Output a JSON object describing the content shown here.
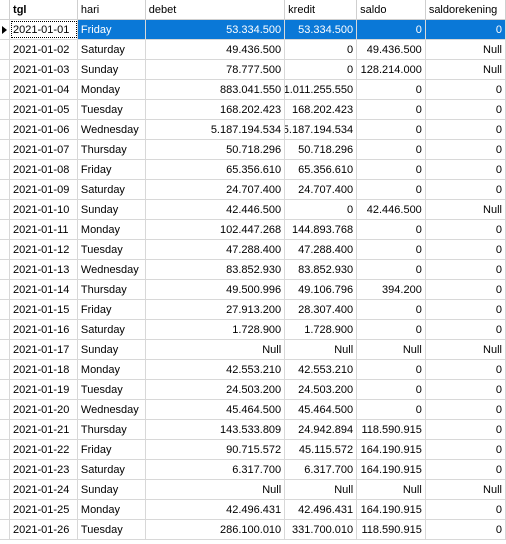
{
  "columns": {
    "tgl": "tgl",
    "hari": "hari",
    "debet": "debet",
    "kredit": "kredit",
    "saldo": "saldo",
    "saldorekening": "saldorekening"
  },
  "selected_row": 0,
  "rows": [
    {
      "tgl": "2021-01-01",
      "hari": "Friday",
      "debet": "53.334.500",
      "kredit": "53.334.500",
      "saldo": "0",
      "saldorekening": "0"
    },
    {
      "tgl": "2021-01-02",
      "hari": "Saturday",
      "debet": "49.436.500",
      "kredit": "0",
      "saldo": "49.436.500",
      "saldorekening": "Null"
    },
    {
      "tgl": "2021-01-03",
      "hari": "Sunday",
      "debet": "78.777.500",
      "kredit": "0",
      "saldo": "128.214.000",
      "saldorekening": "Null"
    },
    {
      "tgl": "2021-01-04",
      "hari": "Monday",
      "debet": "883.041.550",
      "kredit": "1.011.255.550",
      "saldo": "0",
      "saldorekening": "0"
    },
    {
      "tgl": "2021-01-05",
      "hari": "Tuesday",
      "debet": "168.202.423",
      "kredit": "168.202.423",
      "saldo": "0",
      "saldorekening": "0"
    },
    {
      "tgl": "2021-01-06",
      "hari": "Wednesday",
      "debet": "5.187.194.534",
      "kredit": "5.187.194.534",
      "saldo": "0",
      "saldorekening": "0"
    },
    {
      "tgl": "2021-01-07",
      "hari": "Thursday",
      "debet": "50.718.296",
      "kredit": "50.718.296",
      "saldo": "0",
      "saldorekening": "0"
    },
    {
      "tgl": "2021-01-08",
      "hari": "Friday",
      "debet": "65.356.610",
      "kredit": "65.356.610",
      "saldo": "0",
      "saldorekening": "0"
    },
    {
      "tgl": "2021-01-09",
      "hari": "Saturday",
      "debet": "24.707.400",
      "kredit": "24.707.400",
      "saldo": "0",
      "saldorekening": "0"
    },
    {
      "tgl": "2021-01-10",
      "hari": "Sunday",
      "debet": "42.446.500",
      "kredit": "0",
      "saldo": "42.446.500",
      "saldorekening": "Null"
    },
    {
      "tgl": "2021-01-11",
      "hari": "Monday",
      "debet": "102.447.268",
      "kredit": "144.893.768",
      "saldo": "0",
      "saldorekening": "0"
    },
    {
      "tgl": "2021-01-12",
      "hari": "Tuesday",
      "debet": "47.288.400",
      "kredit": "47.288.400",
      "saldo": "0",
      "saldorekening": "0"
    },
    {
      "tgl": "2021-01-13",
      "hari": "Wednesday",
      "debet": "83.852.930",
      "kredit": "83.852.930",
      "saldo": "0",
      "saldorekening": "0"
    },
    {
      "tgl": "2021-01-14",
      "hari": "Thursday",
      "debet": "49.500.996",
      "kredit": "49.106.796",
      "saldo": "394.200",
      "saldorekening": "0"
    },
    {
      "tgl": "2021-01-15",
      "hari": "Friday",
      "debet": "27.913.200",
      "kredit": "28.307.400",
      "saldo": "0",
      "saldorekening": "0"
    },
    {
      "tgl": "2021-01-16",
      "hari": "Saturday",
      "debet": "1.728.900",
      "kredit": "1.728.900",
      "saldo": "0",
      "saldorekening": "0"
    },
    {
      "tgl": "2021-01-17",
      "hari": "Sunday",
      "debet": "Null",
      "kredit": "Null",
      "saldo": "Null",
      "saldorekening": "Null"
    },
    {
      "tgl": "2021-01-18",
      "hari": "Monday",
      "debet": "42.553.210",
      "kredit": "42.553.210",
      "saldo": "0",
      "saldorekening": "0"
    },
    {
      "tgl": "2021-01-19",
      "hari": "Tuesday",
      "debet": "24.503.200",
      "kredit": "24.503.200",
      "saldo": "0",
      "saldorekening": "0"
    },
    {
      "tgl": "2021-01-20",
      "hari": "Wednesday",
      "debet": "45.464.500",
      "kredit": "45.464.500",
      "saldo": "0",
      "saldorekening": "0"
    },
    {
      "tgl": "2021-01-21",
      "hari": "Thursday",
      "debet": "143.533.809",
      "kredit": "24.942.894",
      "saldo": "118.590.915",
      "saldorekening": "0"
    },
    {
      "tgl": "2021-01-22",
      "hari": "Friday",
      "debet": "90.715.572",
      "kredit": "45.115.572",
      "saldo": "164.190.915",
      "saldorekening": "0"
    },
    {
      "tgl": "2021-01-23",
      "hari": "Saturday",
      "debet": "6.317.700",
      "kredit": "6.317.700",
      "saldo": "164.190.915",
      "saldorekening": "0"
    },
    {
      "tgl": "2021-01-24",
      "hari": "Sunday",
      "debet": "Null",
      "kredit": "Null",
      "saldo": "Null",
      "saldorekening": "Null"
    },
    {
      "tgl": "2021-01-25",
      "hari": "Monday",
      "debet": "42.496.431",
      "kredit": "42.496.431",
      "saldo": "164.190.915",
      "saldorekening": "0"
    },
    {
      "tgl": "2021-01-26",
      "hari": "Tuesday",
      "debet": "286.100.010",
      "kredit": "331.700.010",
      "saldo": "118.590.915",
      "saldorekening": "0"
    }
  ]
}
